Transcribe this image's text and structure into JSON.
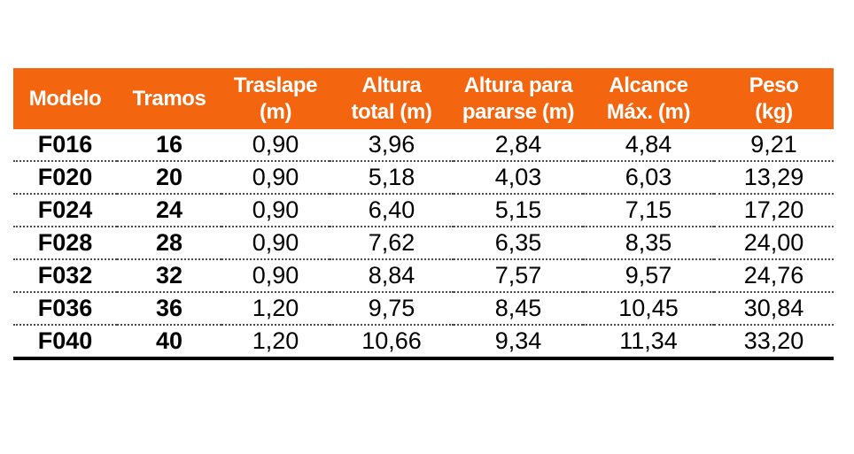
{
  "page": {
    "background": "#ffffff"
  },
  "table": {
    "header_bg": "#F3650F",
    "header_text_color": "#FFFFFF",
    "body_text_color": "#000000",
    "columns": [
      {
        "key": "modelo",
        "label": "Modelo",
        "label_lines": [
          "Modelo"
        ]
      },
      {
        "key": "tramos",
        "label": "Tramos",
        "label_lines": [
          "Tramos"
        ]
      },
      {
        "key": "traslape_m",
        "label": "Traslape (m)",
        "label_lines": [
          "Traslape",
          "(m)"
        ]
      },
      {
        "key": "altura_total_m",
        "label": "Altura total (m)",
        "label_lines": [
          "Altura",
          "total (m)"
        ]
      },
      {
        "key": "altura_para_pararse_m",
        "label": "Altura para pararse (m)",
        "label_lines": [
          "Altura para",
          "pararse (m)"
        ]
      },
      {
        "key": "alcance_max_m",
        "label": "Alcance Máx. (m)",
        "label_lines": [
          "Alcance",
          "Máx. (m)"
        ]
      },
      {
        "key": "peso_kg",
        "label": "Peso (kg)",
        "label_lines": [
          "Peso",
          "(kg)"
        ]
      }
    ],
    "rows": [
      [
        "F016",
        "16",
        "0,90",
        "3,96",
        "2,84",
        "4,84",
        "9,21"
      ],
      [
        "F020",
        "20",
        "0,90",
        "5,18",
        "4,03",
        "6,03",
        "13,29"
      ],
      [
        "F024",
        "24",
        "0,90",
        "6,40",
        "5,15",
        "7,15",
        "17,20"
      ],
      [
        "F028",
        "28",
        "0,90",
        "7,62",
        "6,35",
        "8,35",
        "24,00"
      ],
      [
        "F032",
        "32",
        "0,90",
        "8,84",
        "7,57",
        "9,57",
        "24,76"
      ],
      [
        "F036",
        "36",
        "1,20",
        "9,75",
        "8,45",
        "10,45",
        "30,84"
      ],
      [
        "F040",
        "40",
        "1,20",
        "10,66",
        "9,34",
        "11,34",
        "33,20"
      ]
    ]
  }
}
